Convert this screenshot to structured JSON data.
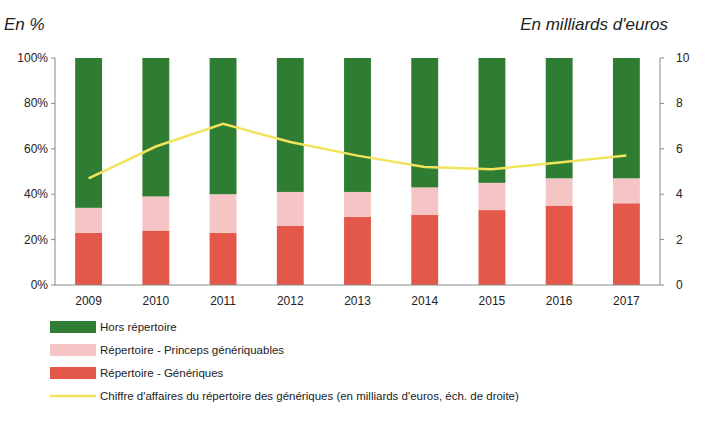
{
  "chart_data": {
    "type": "bar",
    "stacked": true,
    "grid": false,
    "legend": "bottom",
    "y_label": "En %",
    "y2_label": "En milliards d'euros",
    "categories": [
      "2009",
      "2010",
      "2011",
      "2012",
      "2013",
      "2014",
      "2015",
      "2016",
      "2017"
    ],
    "ylim": [
      0,
      100
    ],
    "yticks": [
      {
        "value": 0,
        "label": "0%"
      },
      {
        "value": 20,
        "label": "20%"
      },
      {
        "value": 40,
        "label": "40%"
      },
      {
        "value": 60,
        "label": "60%"
      },
      {
        "value": 80,
        "label": "80%"
      },
      {
        "value": 100,
        "label": "100%"
      }
    ],
    "y2lim": [
      0,
      10
    ],
    "y2ticks": [
      0,
      2,
      4,
      6,
      8,
      10
    ],
    "series": [
      {
        "name": "Hors répertoire",
        "type": "bar",
        "color": "#2e7d32",
        "values": [
          66,
          61,
          60,
          59,
          59,
          57,
          55,
          53,
          53
        ]
      },
      {
        "name": "Répertoire - Princeps génériquables",
        "type": "bar",
        "color": "#f5c4c4",
        "values": [
          11,
          15,
          17,
          15,
          11,
          12,
          12,
          12,
          11
        ]
      },
      {
        "name": "Répertoire - Génériques",
        "type": "bar",
        "color": "#e3584b",
        "values": [
          23,
          24,
          23,
          26,
          30,
          31,
          33,
          35,
          36
        ]
      },
      {
        "name": "Chiffre d'affaires du répertoire des génériques (en milliards d'euros, éch. de droite)",
        "type": "line",
        "axis": "y2",
        "color": "#f2e35c",
        "line_style": "solid",
        "values": [
          4.7,
          6.1,
          7.1,
          6.3,
          5.7,
          5.2,
          5.1,
          5.4,
          5.7
        ]
      }
    ]
  }
}
